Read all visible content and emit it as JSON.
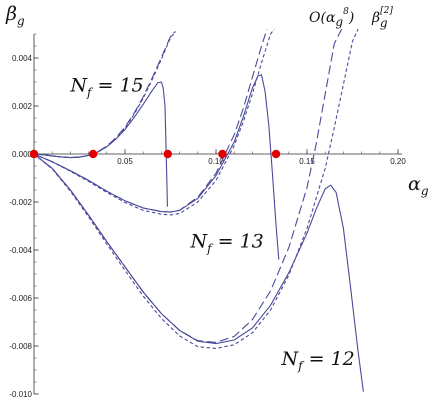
{
  "chart_data": {
    "type": "line",
    "xlabel": "α",
    "xlabel_sub": "g",
    "ylabel": "β",
    "ylabel_sub": "g",
    "xlim": [
      0,
      0.2
    ],
    "ylim": [
      -0.01,
      0.005
    ],
    "x_ticks": [
      0.05,
      0.1,
      0.15,
      0.2
    ],
    "x_tick_labels": [
      "0.05",
      "0.10",
      "0.15",
      "0.20"
    ],
    "y_ticks": [
      0.004,
      0.002,
      0.0,
      -0.002,
      -0.004,
      -0.006,
      -0.008,
      -0.01
    ],
    "y_tick_labels": [
      "0.004",
      "0.002",
      "0.000",
      "-0.002",
      "-0.004",
      "-0.006",
      "-0.008",
      "-0.010"
    ],
    "grid": false,
    "legend": {
      "entries": [
        {
          "main": "O(α",
          "sub": "g",
          "sup": "8",
          "close": ")",
          "style": "long-dash"
        },
        {
          "main": "β",
          "sub": "g",
          "sup": "[2]",
          "style": "short-dash"
        }
      ]
    },
    "annotations": [
      {
        "text": "N",
        "sub": "f",
        "rest": " = 15",
        "x": 0.02,
        "y": 0.0026
      },
      {
        "text": "N",
        "sub": "f",
        "rest": " = 13",
        "x": 0.086,
        "y": -0.0039
      },
      {
        "text": "N",
        "sub": "f",
        "rest": " = 12",
        "x": 0.136,
        "y": -0.0088
      }
    ],
    "fixed_points": [
      {
        "x": 0.0,
        "y": 0.0
      },
      {
        "x": 0.0325,
        "y": 0.0
      },
      {
        "x": 0.0735,
        "y": 0.0
      },
      {
        "x": 0.1035,
        "y": 0.0
      },
      {
        "x": 0.133,
        "y": 0.0
      }
    ],
    "series": [
      {
        "group": "Nf=15",
        "style": "solid",
        "x": [
          0,
          0.005,
          0.01,
          0.015,
          0.02,
          0.025,
          0.03,
          0.035,
          0.04,
          0.045,
          0.05,
          0.055,
          0.06,
          0.065,
          0.068,
          0.07,
          0.071,
          0.072,
          0.0725,
          0.073,
          0.0733
        ],
        "y": [
          0,
          -3e-05,
          -8e-05,
          -0.00012,
          -0.00015,
          -0.00013,
          -6e-05,
          8e-05,
          0.0003,
          0.00062,
          0.00102,
          0.00152,
          0.00207,
          0.00265,
          0.00297,
          0.003,
          0.00275,
          0.002,
          0.0005,
          -0.0012,
          -0.0022
        ]
      },
      {
        "group": "Nf=15",
        "style": "long-dash",
        "x": [
          0,
          0.005,
          0.01,
          0.015,
          0.02,
          0.025,
          0.03,
          0.035,
          0.04,
          0.045,
          0.05,
          0.055,
          0.06,
          0.065,
          0.07,
          0.075,
          0.0775
        ],
        "y": [
          0,
          -3e-05,
          -8e-05,
          -0.00012,
          -0.00015,
          -0.00013,
          -6e-05,
          9e-05,
          0.00033,
          0.00068,
          0.00112,
          0.0017,
          0.00238,
          0.00318,
          0.00402,
          0.0049,
          0.0051
        ]
      },
      {
        "group": "Nf=15",
        "style": "short-dash",
        "x": [
          0,
          0.005,
          0.01,
          0.015,
          0.02,
          0.025,
          0.03,
          0.035,
          0.04,
          0.045,
          0.05,
          0.055,
          0.06,
          0.065,
          0.07,
          0.075,
          0.0778
        ],
        "y": [
          0,
          -3e-05,
          -8e-05,
          -0.00012,
          -0.00015,
          -0.00013,
          -6e-05,
          8e-05,
          0.00031,
          0.00065,
          0.00108,
          0.00165,
          0.00232,
          0.00311,
          0.00395,
          0.00485,
          0.0051
        ]
      },
      {
        "group": "Nf=13",
        "style": "solid",
        "x": [
          0,
          0.01,
          0.02,
          0.03,
          0.04,
          0.05,
          0.06,
          0.07,
          0.075,
          0.08,
          0.09,
          0.1,
          0.11,
          0.115,
          0.12,
          0.123,
          0.125,
          0.127,
          0.129,
          0.131,
          0.133,
          0.1345
        ],
        "y": [
          0,
          -0.00032,
          -0.0007,
          -0.0011,
          -0.00155,
          -0.00195,
          -0.00225,
          -0.0024,
          -0.00242,
          -0.00235,
          -0.00185,
          -0.0009,
          0.0005,
          0.00155,
          0.00275,
          0.00325,
          0.0033,
          0.0026,
          0.0012,
          -0.0008,
          -0.003,
          -0.0044
        ]
      },
      {
        "group": "Nf=13",
        "style": "long-dash",
        "x": [
          0,
          0.01,
          0.02,
          0.03,
          0.04,
          0.05,
          0.06,
          0.07,
          0.075,
          0.08,
          0.09,
          0.1,
          0.11,
          0.115,
          0.12,
          0.125,
          0.128
        ],
        "y": [
          0,
          -0.00032,
          -0.0007,
          -0.0011,
          -0.00155,
          -0.00195,
          -0.00225,
          -0.0024,
          -0.00242,
          -0.00234,
          -0.0018,
          -0.0008,
          0.0008,
          0.0019,
          0.0032,
          0.0045,
          0.0052
        ]
      },
      {
        "group": "Nf=13",
        "style": "short-dash",
        "x": [
          0,
          0.01,
          0.02,
          0.03,
          0.04,
          0.05,
          0.06,
          0.07,
          0.075,
          0.08,
          0.09,
          0.1,
          0.11,
          0.115,
          0.12,
          0.125,
          0.13,
          0.132
        ],
        "y": [
          0,
          -0.00033,
          -0.00072,
          -0.00114,
          -0.0016,
          -0.00202,
          -0.00235,
          -0.00251,
          -0.00254,
          -0.00248,
          -0.002,
          -0.0011,
          0.00035,
          0.00135,
          0.0025,
          0.0038,
          0.005,
          0.0052
        ]
      },
      {
        "group": "Nf=12",
        "style": "solid",
        "x": [
          0,
          0.01,
          0.02,
          0.03,
          0.04,
          0.05,
          0.06,
          0.07,
          0.08,
          0.09,
          0.1,
          0.11,
          0.12,
          0.13,
          0.14,
          0.15,
          0.155,
          0.16,
          0.163,
          0.166,
          0.17,
          0.174,
          0.178,
          0.181
        ],
        "y": [
          0,
          -0.0006,
          -0.0015,
          -0.00255,
          -0.00365,
          -0.0047,
          -0.00575,
          -0.00665,
          -0.00735,
          -0.0078,
          -0.0079,
          -0.00775,
          -0.00725,
          -0.0063,
          -0.00495,
          -0.0033,
          -0.0023,
          -0.00145,
          -0.0013,
          -0.0016,
          -0.0031,
          -0.0056,
          -0.0082,
          -0.0099
        ]
      },
      {
        "group": "Nf=12",
        "style": "long-dash",
        "x": [
          0,
          0.01,
          0.02,
          0.03,
          0.04,
          0.05,
          0.06,
          0.07,
          0.08,
          0.09,
          0.1,
          0.11,
          0.12,
          0.13,
          0.14,
          0.15,
          0.155,
          0.16,
          0.165,
          0.169
        ],
        "y": [
          0,
          -0.0006,
          -0.0015,
          -0.00255,
          -0.00365,
          -0.0047,
          -0.00575,
          -0.00665,
          -0.00735,
          -0.00778,
          -0.00785,
          -0.0076,
          -0.0069,
          -0.0057,
          -0.0039,
          -0.0014,
          0.0004,
          0.0025,
          0.0046,
          0.0052
        ]
      },
      {
        "group": "Nf=12",
        "style": "short-dash",
        "x": [
          0,
          0.01,
          0.02,
          0.03,
          0.04,
          0.05,
          0.06,
          0.07,
          0.08,
          0.09,
          0.1,
          0.11,
          0.12,
          0.13,
          0.14,
          0.15,
          0.16,
          0.165,
          0.17,
          0.175,
          0.178
        ],
        "y": [
          0,
          -0.00062,
          -0.00155,
          -0.00262,
          -0.00375,
          -0.00485,
          -0.00592,
          -0.00685,
          -0.00758,
          -0.00803,
          -0.0081,
          -0.00795,
          -0.00745,
          -0.0065,
          -0.00505,
          -0.0031,
          -0.0006,
          0.0011,
          0.0029,
          0.0047,
          0.0052
        ]
      }
    ]
  }
}
